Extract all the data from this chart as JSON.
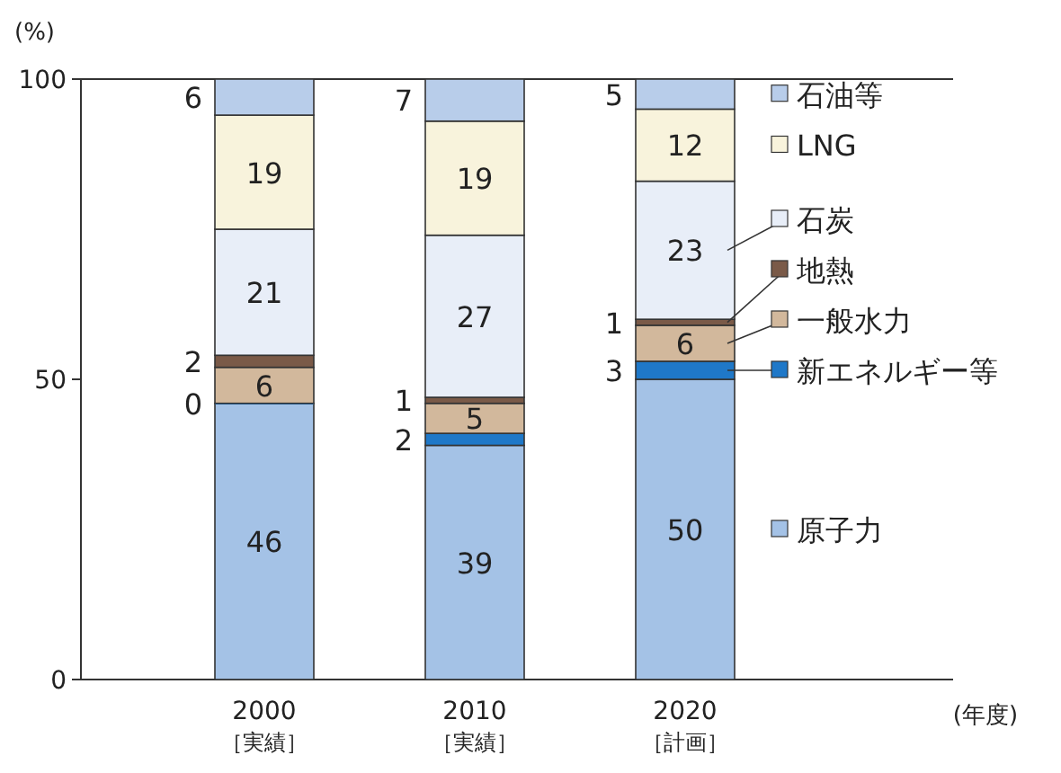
{
  "chart_data": {
    "type": "bar",
    "stacked": true,
    "ylabel": "(%)",
    "xlabel": "(年度)",
    "categories": [
      "2000\n［実績］",
      "2010\n［実績］",
      "2020\n［計画］"
    ],
    "series": [
      {
        "name": "原子力",
        "color": "#a4c2e6",
        "values": [
          46,
          39,
          50
        ],
        "value_labels": [
          "46",
          "39",
          "50"
        ]
      },
      {
        "name": "新エネルギー等",
        "color": "#1f78c8",
        "values": [
          0,
          2,
          3
        ],
        "value_labels": [
          null,
          "2",
          "3"
        ]
      },
      {
        "name": "一般水力",
        "color": "#d2b89c",
        "values": [
          6,
          5,
          6
        ],
        "value_labels": [
          "6",
          "5",
          "6"
        ]
      },
      {
        "name": "地熱",
        "color": "#7a5a48",
        "values": [
          2,
          1,
          1
        ],
        "value_labels": [
          "2",
          "1",
          "1"
        ]
      },
      {
        "name": "石炭",
        "color": "#e8eef8",
        "values": [
          21,
          27,
          23
        ],
        "value_labels": [
          "21",
          "27",
          "23"
        ]
      },
      {
        "name": "LNG",
        "color": "#f8f3dc",
        "values": [
          19,
          19,
          12
        ],
        "value_labels": [
          "19",
          "19",
          "12"
        ]
      },
      {
        "name": "石油等",
        "color": "#b8cdea",
        "values": [
          6,
          7,
          5
        ],
        "value_labels": [
          "6",
          "7",
          "5"
        ]
      }
    ],
    "annotations": [
      {
        "text": "0",
        "x": "2000\n［実績］",
        "y": 46
      }
    ],
    "ylim": [
      0,
      100
    ],
    "yticks": [
      0,
      50,
      100
    ],
    "legend": "right",
    "grid": false
  }
}
